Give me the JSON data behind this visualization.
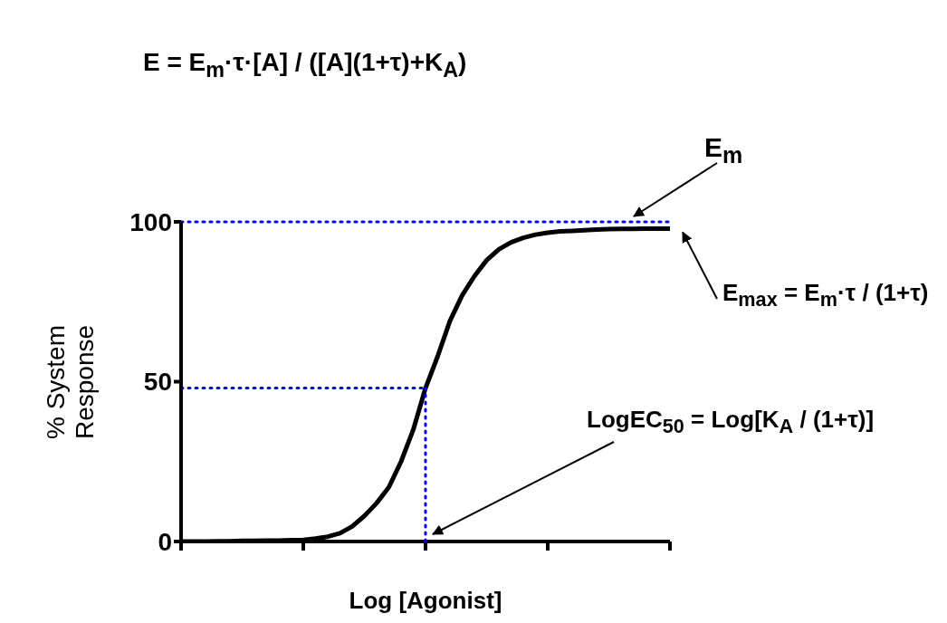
{
  "chart_data": {
    "type": "line",
    "xlabel": "Log [Agonist]",
    "ylabel": "% System Response",
    "categories": [
      null,
      null,
      null,
      null,
      null,
      null,
      null,
      null,
      null,
      null,
      null,
      null,
      null,
      null,
      null,
      null,
      null,
      null,
      null,
      null,
      null,
      null,
      null,
      null,
      null,
      null,
      null,
      null,
      null,
      null,
      null,
      null,
      null,
      null,
      null,
      null,
      null,
      null,
      null,
      null,
      null
    ],
    "series": [
      {
        "color": "#000000",
        "values": [
          0,
          0,
          0,
          0.1,
          0.1,
          0.2,
          0.2,
          0.3,
          0.3,
          0.4,
          0.5,
          0.9,
          1.5,
          2.6,
          4.7,
          8,
          12,
          17,
          25,
          35,
          48,
          58,
          69,
          77,
          83,
          88,
          91.4,
          93.6,
          95,
          96,
          96.6,
          97,
          97.2,
          97.4,
          97.6,
          97.7,
          97.8,
          97.8,
          97.9,
          97.9,
          97.9
        ]
      }
    ],
    "ylim": [
      0,
      100
    ],
    "yticks": [
      0,
      50,
      100
    ],
    "marker": "none",
    "ref_lines": [
      {
        "axis": "y",
        "value": 100,
        "color": "#0000ff",
        "line_style": "dotted"
      },
      {
        "axis": "y",
        "value": 48,
        "color": "#0000ff",
        "line_style": "dotted"
      }
    ],
    "annotations": [
      "E = E$_{m}$·τ·[A] / ([A](1+τ)+K$_{A}$)",
      "E$_{m}$",
      "E$_{max}$ = E$_{m}$·τ / (1+τ)",
      "LogEC$_{50}$ = Log[K$_{A}$ / (1+τ)]"
    ]
  }
}
